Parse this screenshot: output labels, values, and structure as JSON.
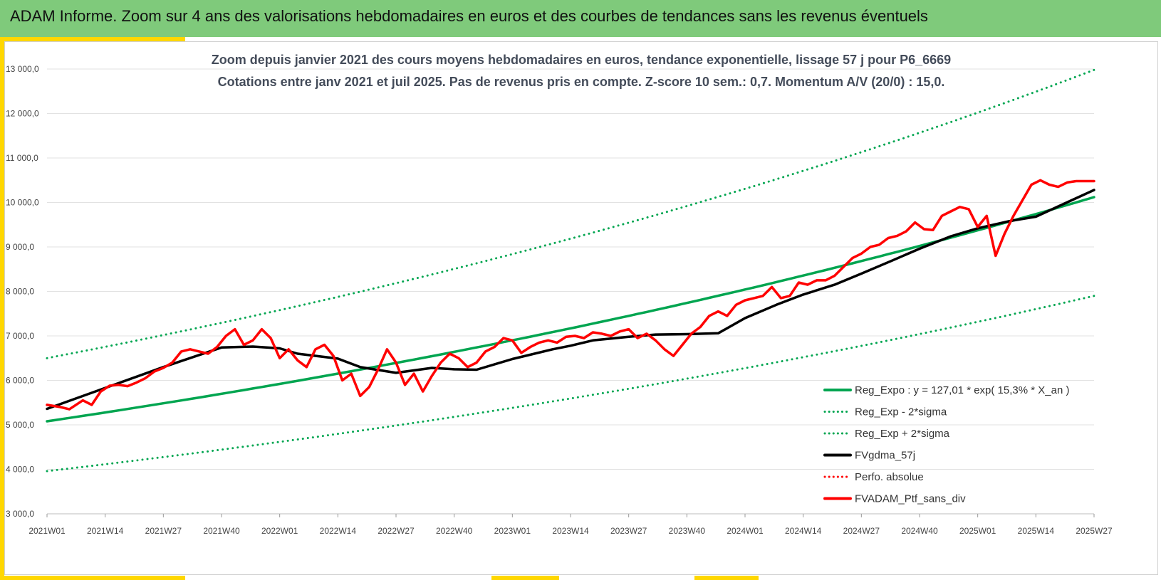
{
  "header": {
    "title": "ADAM Informe. Zoom sur 4 ans des valorisations hebdomadaires en euros et des courbes de tendances sans les revenus éventuels"
  },
  "colors": {
    "banner": "#7fca7b",
    "accent": "#ffd700",
    "trend": "#00a550",
    "smooth": "#000000",
    "price": "#ff0000"
  },
  "chart_data": {
    "type": "line",
    "subtitle_lines": [
      "Zoom depuis janvier 2021 des cours moyens hebdomadaires  en euros, tendance exponentielle, lissage 57 j pour P6_6669",
      "Cotations entre janv 2021 et juil 2025. Pas de revenus pris en compte. Z-score 10 sem.: 0,7. Momentum A/V (20/0) : 15,0."
    ],
    "ylim": [
      3000,
      13000
    ],
    "y_ticks": [
      "3 000,0",
      "4 000,0",
      "5 000,0",
      "6 000,0",
      "7 000,0",
      "8 000,0",
      "9 000,0",
      "10 000,0",
      "11 000,0",
      "12 000,0",
      "13 000,0"
    ],
    "y_tick_values": [
      3000,
      4000,
      5000,
      6000,
      7000,
      8000,
      9000,
      10000,
      11000,
      12000,
      13000
    ],
    "x_ticks": [
      "2021W01",
      "2021W14",
      "2021W27",
      "2021W40",
      "2022W01",
      "2022W14",
      "2022W27",
      "2022W40",
      "2023W01",
      "2023W14",
      "2023W27",
      "2023W40",
      "2024W01",
      "2024W14",
      "2024W27",
      "2024W40",
      "2025W01",
      "2025W14",
      "2025W27"
    ],
    "n_weeks": 235,
    "grid": true,
    "legend_position": "bottom-right",
    "legend": [
      {
        "label": "Reg_Expo : y = 127,01 * exp( 15,3% *  X_an )",
        "color": "#00a550",
        "style": "solid"
      },
      {
        "label": "Reg_Exp - 2*sigma",
        "color": "#00a550",
        "style": "dotted"
      },
      {
        "label": "Reg_Exp + 2*sigma",
        "color": "#00a550",
        "style": "dotted"
      },
      {
        "label": "FVgdma_57j",
        "color": "#000000",
        "style": "solid"
      },
      {
        "label": "Perfo. absolue",
        "color": "#ff0000",
        "style": "dotted"
      },
      {
        "label": "FVADAM_Ptf_sans_div",
        "color": "#ff0000",
        "style": "solid"
      }
    ],
    "series": [
      {
        "name": "Reg_Expo : y = 127,01 * exp( 15,3% *  X_an )",
        "style": "solid",
        "color": "#00a550",
        "x": [
          0,
          234
        ],
        "y": [
          5080,
          10120
        ],
        "curve": "exponential"
      },
      {
        "name": "Reg_Exp - 2*sigma",
        "style": "dotted",
        "color": "#00a550",
        "x": [
          0,
          234
        ],
        "y": [
          3960,
          7900
        ],
        "curve": "exponential"
      },
      {
        "name": "Reg_Exp + 2*sigma",
        "style": "dotted",
        "color": "#00a550",
        "x": [
          0,
          234
        ],
        "y": [
          6500,
          12980
        ],
        "curve": "exponential"
      },
      {
        "name": "FVgdma_57j",
        "style": "solid",
        "color": "#000000",
        "x": [
          0,
          13,
          26,
          39,
          46,
          52,
          56,
          65,
          70,
          78,
          86,
          91,
          96,
          104,
          113,
          117,
          122,
          130,
          136,
          143,
          150,
          156,
          163,
          169,
          176,
          182,
          189,
          195,
          202,
          208,
          215,
          221,
          229,
          234
        ],
        "y": [
          5360,
          5830,
          6300,
          6740,
          6760,
          6720,
          6600,
          6490,
          6300,
          6170,
          6280,
          6250,
          6240,
          6480,
          6700,
          6780,
          6900,
          6980,
          7030,
          7040,
          7060,
          7400,
          7700,
          7930,
          8150,
          8400,
          8700,
          8960,
          9240,
          9420,
          9580,
          9680,
          10050,
          10280
        ]
      },
      {
        "name": "FVADAM_Ptf_sans_div",
        "style": "solid",
        "color": "#ff0000",
        "x": [
          0,
          3,
          5,
          8,
          10,
          12,
          14,
          16,
          18,
          20,
          22,
          24,
          26,
          28,
          30,
          32,
          34,
          36,
          38,
          40,
          42,
          44,
          46,
          48,
          50,
          52,
          54,
          56,
          58,
          60,
          62,
          64,
          66,
          68,
          70,
          72,
          74,
          76,
          78,
          80,
          82,
          84,
          86,
          88,
          90,
          92,
          94,
          96,
          98,
          100,
          102,
          104,
          106,
          108,
          110,
          112,
          114,
          116,
          118,
          120,
          122,
          124,
          126,
          128,
          130,
          132,
          134,
          136,
          138,
          140,
          142,
          144,
          146,
          148,
          150,
          152,
          154,
          156,
          158,
          160,
          162,
          164,
          166,
          168,
          170,
          172,
          174,
          176,
          178,
          180,
          182,
          184,
          186,
          188,
          190,
          192,
          194,
          196,
          198,
          200,
          202,
          204,
          206,
          208,
          210,
          212,
          214,
          216,
          218,
          220,
          222,
          224,
          226,
          228,
          230,
          232,
          234
        ],
        "y": [
          5450,
          5400,
          5350,
          5550,
          5450,
          5750,
          5880,
          5900,
          5870,
          5950,
          6050,
          6200,
          6280,
          6400,
          6650,
          6700,
          6650,
          6600,
          6750,
          7000,
          7150,
          6800,
          6900,
          7150,
          6950,
          6500,
          6700,
          6450,
          6300,
          6700,
          6800,
          6550,
          6000,
          6150,
          5650,
          5850,
          6250,
          6700,
          6400,
          5900,
          6150,
          5750,
          6100,
          6400,
          6600,
          6500,
          6300,
          6400,
          6650,
          6750,
          6950,
          6900,
          6620,
          6750,
          6850,
          6900,
          6850,
          6980,
          7000,
          6950,
          7080,
          7050,
          7000,
          7100,
          7150,
          6950,
          7050,
          6900,
          6700,
          6550,
          6800,
          7050,
          7200,
          7450,
          7550,
          7450,
          7700,
          7800,
          7850,
          7900,
          8100,
          7850,
          7900,
          8200,
          8150,
          8250,
          8250,
          8350,
          8550,
          8750,
          8850,
          9000,
          9050,
          9200,
          9250,
          9350,
          9550,
          9400,
          9380,
          9700,
          9800,
          9900,
          9850,
          9450,
          9700,
          8800,
          9300,
          9700,
          10050,
          10400,
          10500,
          10400,
          10350,
          10450,
          10480,
          10480,
          10480
        ]
      }
    ]
  }
}
